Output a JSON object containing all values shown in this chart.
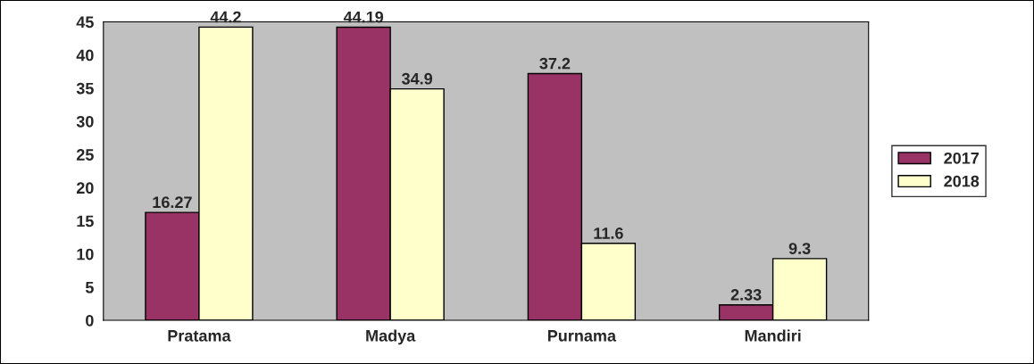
{
  "chart_data": {
    "type": "bar",
    "categories": [
      "Pratama",
      "Madya",
      "Purnama",
      "Mandiri"
    ],
    "series": [
      {
        "name": "2017",
        "color": "#993366",
        "values": [
          16.27,
          44.19,
          37.2,
          2.33
        ]
      },
      {
        "name": "2018",
        "color": "#ffffcc",
        "values": [
          44.2,
          34.9,
          11.6,
          9.3
        ]
      }
    ],
    "ylim": [
      0,
      45
    ],
    "yticks": [
      0,
      5,
      10,
      15,
      20,
      25,
      30,
      35,
      40,
      45
    ],
    "data_labels": true,
    "grid": false,
    "legend": "right"
  }
}
